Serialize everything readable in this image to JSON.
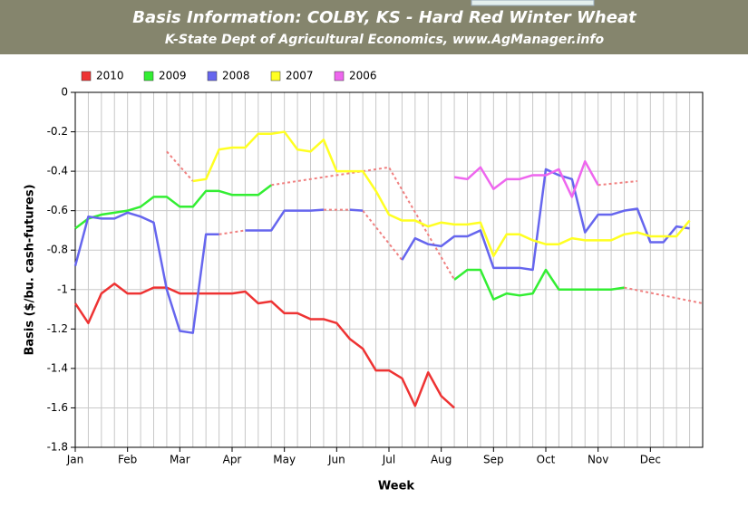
{
  "chart_data": {
    "type": "line",
    "title": "Basis Information: COLBY, KS - Hard Red Winter Wheat",
    "subtitle": "K-State Dept of Agricultural Economics, www.AgManager.info",
    "x_label": "Week",
    "y_label": "Basis ($/bu. cash-futures)",
    "x": [
      0,
      1,
      2,
      3,
      4,
      5,
      6,
      7,
      8,
      9,
      10,
      11,
      12,
      13,
      14,
      15,
      16,
      17,
      18,
      19,
      20,
      21,
      22,
      23,
      24,
      25,
      26,
      27,
      28,
      29,
      30,
      31,
      32,
      33,
      34,
      35,
      36,
      37,
      38,
      39,
      40,
      41,
      42,
      43,
      44,
      45,
      46,
      47
    ],
    "xlim": [
      0,
      48
    ],
    "xticks": [
      {
        "value": 0,
        "label": "Jan"
      },
      {
        "value": 4,
        "label": "Feb"
      },
      {
        "value": 8,
        "label": "Mar"
      },
      {
        "value": 12,
        "label": "Apr"
      },
      {
        "value": 16,
        "label": "May"
      },
      {
        "value": 20,
        "label": "Jun"
      },
      {
        "value": 24,
        "label": "Jul"
      },
      {
        "value": 28,
        "label": "Aug"
      },
      {
        "value": 32,
        "label": "Sep"
      },
      {
        "value": 36,
        "label": "Oct"
      },
      {
        "value": 40,
        "label": "Nov"
      },
      {
        "value": 44,
        "label": "Dec"
      }
    ],
    "ylim": [
      -1.8,
      0
    ],
    "yticks": [
      0,
      -0.2,
      -0.4,
      -0.6,
      -0.8,
      -1,
      -1.2,
      -1.4,
      -1.6,
      -1.8
    ],
    "grid": true,
    "legend": "top",
    "series": [
      {
        "name": "2010",
        "color": "#ee3333",
        "values": [
          -1.07,
          -1.17,
          -1.02,
          -0.97,
          -1.02,
          -1.02,
          -0.99,
          -0.99,
          -1.02,
          -1.02,
          -1.02,
          -1.02,
          -1.02,
          -1.01,
          -1.07,
          -1.06,
          -1.12,
          -1.12,
          -1.15,
          -1.15,
          -1.17,
          -1.25,
          -1.3,
          -1.41,
          -1.41,
          -1.45,
          -1.59,
          -1.42,
          -1.54,
          -1.6,
          null,
          null,
          null,
          null,
          null,
          null,
          null,
          null,
          null,
          null,
          null,
          null,
          null,
          null,
          null,
          null,
          null,
          null
        ]
      },
      {
        "name": "2009",
        "color": "#33ee33",
        "values": [
          -0.69,
          -0.64,
          -0.62,
          -0.61,
          -0.6,
          -0.58,
          -0.53,
          -0.53,
          -0.58,
          -0.58,
          -0.5,
          -0.5,
          -0.52,
          -0.52,
          -0.52,
          -0.47,
          null,
          null,
          null,
          null,
          null,
          null,
          null,
          null,
          null,
          null,
          null,
          null,
          null,
          -0.95,
          -0.9,
          -0.9,
          -1.05,
          -1.02,
          -1.03,
          -1.02,
          -0.9,
          -1.0,
          -1.0,
          -1.0,
          -1.0,
          -1.0,
          -0.99,
          null,
          null,
          null,
          null,
          null
        ]
      },
      {
        "name": "2008",
        "color": "#6666ee",
        "values": [
          -0.88,
          -0.63,
          -0.64,
          -0.64,
          -0.61,
          -0.63,
          -0.66,
          -1.0,
          -1.21,
          -1.22,
          -0.72,
          -0.72,
          null,
          -0.7,
          -0.7,
          -0.7,
          -0.6,
          -0.6,
          -0.6,
          -0.595,
          null,
          -0.595,
          -0.6,
          null,
          null,
          -0.85,
          -0.74,
          -0.77,
          -0.78,
          -0.73,
          -0.73,
          -0.7,
          -0.89,
          -0.89,
          -0.89,
          -0.9,
          -0.39,
          -0.42,
          -0.44,
          -0.71,
          -0.62,
          -0.62,
          -0.6,
          -0.59,
          -0.76,
          -0.76,
          -0.68,
          -0.69
        ]
      },
      {
        "name": "2007",
        "color": "#ffff22",
        "values": [
          null,
          null,
          null,
          null,
          null,
          null,
          null,
          null,
          null,
          -0.45,
          -0.44,
          -0.29,
          -0.28,
          -0.28,
          -0.21,
          -0.21,
          -0.2,
          -0.29,
          -0.3,
          -0.24,
          -0.4,
          -0.4,
          -0.4,
          -0.5,
          -0.62,
          -0.65,
          -0.65,
          -0.68,
          -0.66,
          -0.67,
          -0.67,
          -0.66,
          -0.83,
          -0.72,
          -0.72,
          -0.75,
          -0.77,
          -0.77,
          -0.74,
          -0.75,
          -0.75,
          -0.75,
          -0.72,
          -0.71,
          -0.73,
          -0.73,
          -0.73,
          -0.65
        ]
      },
      {
        "name": "2006",
        "color": "#ee66ee",
        "values": [
          null,
          null,
          null,
          null,
          null,
          null,
          null,
          null,
          null,
          null,
          null,
          null,
          null,
          null,
          null,
          null,
          null,
          null,
          null,
          null,
          null,
          null,
          null,
          null,
          null,
          null,
          null,
          null,
          null,
          -0.43,
          -0.44,
          -0.38,
          -0.49,
          -0.44,
          -0.44,
          -0.42,
          -0.42,
          -0.39,
          -0.53,
          -0.35,
          -0.47,
          null,
          null,
          null,
          null,
          null,
          null,
          null
        ]
      }
    ],
    "connector_color": "#f08080",
    "connectors": [
      {
        "x": [
          7,
          9
        ],
        "y": [
          -0.3,
          -0.45
        ]
      },
      {
        "x": [
          11,
          13
        ],
        "y": [
          -0.72,
          -0.7
        ]
      },
      {
        "x": [
          15,
          24,
          29
        ],
        "y": [
          -0.47,
          -0.38,
          -0.95
        ]
      },
      {
        "x": [
          19,
          21
        ],
        "y": [
          -0.595,
          -0.595
        ]
      },
      {
        "x": [
          22,
          25
        ],
        "y": [
          -0.6,
          -0.85
        ]
      },
      {
        "x": [
          40,
          43
        ],
        "y": [
          -0.47,
          -0.45
        ]
      },
      {
        "x": [
          42,
          48
        ],
        "y": [
          -0.99,
          -1.07
        ]
      }
    ]
  }
}
